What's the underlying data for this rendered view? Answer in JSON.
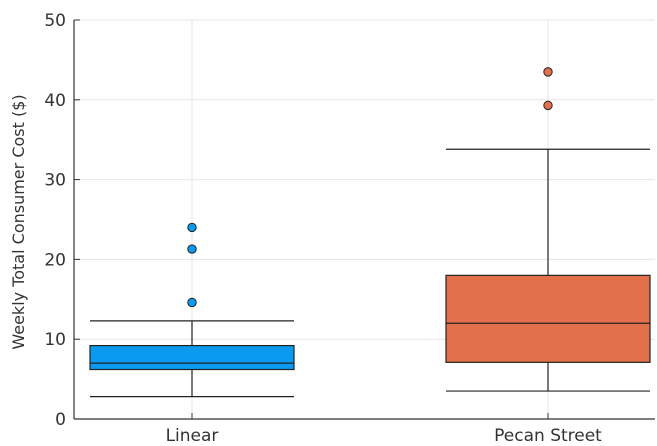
{
  "chart_data": {
    "type": "box",
    "ylabel": "Weekly Total Consumer Cost ($)",
    "xlabel": "",
    "ylim": [
      0,
      50
    ],
    "yticks": [
      0,
      10,
      20,
      30,
      40,
      50
    ],
    "categories": [
      "Linear",
      "Pecan Street"
    ],
    "grid": true,
    "series": [
      {
        "category": "Linear",
        "color": "#0a9bf0",
        "whisker_low": 2.8,
        "q1": 6.2,
        "median": 7.0,
        "q3": 9.2,
        "whisker_high": 12.3,
        "outliers": [
          14.6,
          21.3,
          24.0
        ]
      },
      {
        "category": "Pecan Street",
        "color": "#e2704a",
        "whisker_low": 3.5,
        "q1": 7.1,
        "median": 12.0,
        "q3": 18.0,
        "whisker_high": 33.8,
        "outliers": [
          39.3,
          43.5
        ]
      }
    ]
  }
}
